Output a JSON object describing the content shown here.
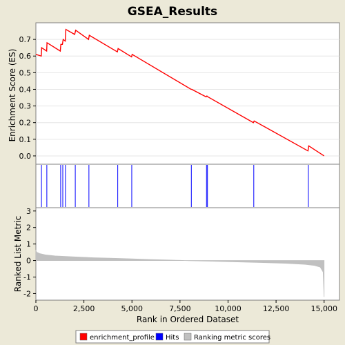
{
  "chart_data": {
    "type": "line",
    "title": "GSEA_Results",
    "xlabel": "Rank in Ordered Dataset",
    "x_ticks": [
      0,
      2500,
      5000,
      7500,
      10000,
      12500,
      15000
    ],
    "x_tick_labels": [
      "0",
      "2,500",
      "5,000",
      "7,500",
      "10,000",
      "12,500",
      "15,000"
    ],
    "xlim": [
      0,
      15800
    ],
    "es_panel": {
      "ylabel": "Enrichment Score (ES)",
      "ylim": [
        -0.05,
        0.8
      ],
      "y_ticks": [
        0.0,
        0.1,
        0.2,
        0.3,
        0.4,
        0.5,
        0.6,
        0.7
      ],
      "y_tick_labels": [
        "0.0",
        "0.1",
        "0.2",
        "0.3",
        "0.4",
        "0.5",
        "0.6",
        "0.7"
      ],
      "series": [
        {
          "name": "enrichment_profile",
          "color": "#ff0000",
          "points": [
            [
              0,
              0.61
            ],
            [
              280,
              0.6
            ],
            [
              300,
              0.65
            ],
            [
              560,
              0.63
            ],
            [
              580,
              0.68
            ],
            [
              1270,
              0.63
            ],
            [
              1300,
              0.67
            ],
            [
              1380,
              0.67
            ],
            [
              1420,
              0.7
            ],
            [
              1530,
              0.69
            ],
            [
              1560,
              0.76
            ],
            [
              2020,
              0.73
            ],
            [
              2070,
              0.755
            ],
            [
              2740,
              0.7
            ],
            [
              2780,
              0.725
            ],
            [
              4240,
              0.625
            ],
            [
              4280,
              0.645
            ],
            [
              4980,
              0.595
            ],
            [
              5010,
              0.61
            ],
            [
              8080,
              0.4
            ],
            [
              8110,
              0.4
            ],
            [
              8860,
              0.355
            ],
            [
              8900,
              0.36
            ],
            [
              8950,
              0.355
            ],
            [
              11320,
              0.2
            ],
            [
              11360,
              0.21
            ],
            [
              14160,
              0.03
            ],
            [
              14200,
              0.06
            ],
            [
              15000,
              0.0
            ]
          ]
        }
      ]
    },
    "hits": {
      "name": "Hits",
      "color": "#0000ff",
      "ranks": [
        290,
        570,
        1290,
        1400,
        1540,
        2050,
        2760,
        4260,
        4990,
        8090,
        8880,
        8930,
        11340,
        14180
      ]
    },
    "ranking_panel": {
      "ylabel": "Ranked List Metric",
      "ylim": [
        -2.4,
        3.2
      ],
      "y_ticks": [
        -2,
        -1,
        0,
        1,
        2,
        3
      ],
      "y_tick_labels": [
        "-2",
        "-1",
        "0",
        "1",
        "2",
        "3"
      ],
      "series": [
        {
          "name": "Ranking metric scores",
          "color": "#c0c0c0",
          "points": [
            [
              0,
              0.6
            ],
            [
              50,
              0.5
            ],
            [
              200,
              0.42
            ],
            [
              500,
              0.34
            ],
            [
              1000,
              0.28
            ],
            [
              2000,
              0.22
            ],
            [
              3000,
              0.17
            ],
            [
              4000,
              0.14
            ],
            [
              5000,
              0.1
            ],
            [
              6000,
              0.06
            ],
            [
              7000,
              0.03
            ],
            [
              7500,
              0.01
            ],
            [
              8000,
              -0.01
            ],
            [
              9000,
              -0.04
            ],
            [
              10000,
              -0.07
            ],
            [
              11000,
              -0.1
            ],
            [
              12000,
              -0.13
            ],
            [
              13000,
              -0.17
            ],
            [
              14000,
              -0.23
            ],
            [
              14500,
              -0.3
            ],
            [
              14800,
              -0.4
            ],
            [
              14950,
              -0.7
            ],
            [
              15000,
              -2.2
            ]
          ]
        }
      ]
    },
    "legend": {
      "placement": "bottom",
      "entries": [
        {
          "label": "enrichment_profile",
          "color": "#ff0000"
        },
        {
          "label": "Hits",
          "color": "#0000ff"
        },
        {
          "label": "Ranking metric scores",
          "color": "#c0c0c0"
        }
      ]
    }
  }
}
